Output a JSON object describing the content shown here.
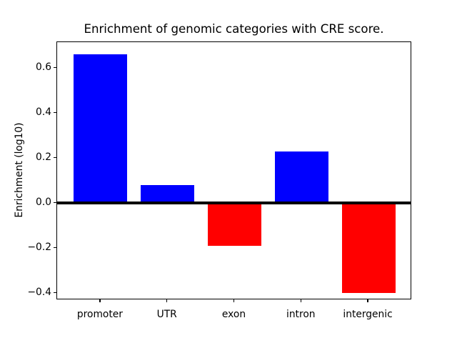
{
  "chart_data": {
    "type": "bar",
    "title": "Enrichment of genomic categories with CRE score.",
    "ylabel": "Enrichment (log10)",
    "xlabel": "",
    "categories": [
      "promoter",
      "UTR",
      "exon",
      "intron",
      "intergenic"
    ],
    "values": [
      0.66,
      0.08,
      -0.19,
      0.23,
      -0.4
    ],
    "bar_colors": [
      "#0000ff",
      "#0000ff",
      "#ff0000",
      "#0000ff",
      "#ff0000"
    ],
    "positive_color": "#0000ff",
    "negative_color": "#ff0000",
    "bar_width_units": 0.8,
    "ylim": [
      -0.431,
      0.715
    ],
    "xlim": [
      -0.65,
      4.65
    ],
    "yticks": [
      0.6,
      0.4,
      0.2,
      0.0,
      -0.2,
      -0.4
    ],
    "ytick_labels": [
      "0.6",
      "0.4",
      "0.2",
      "0.0",
      "−0.2",
      "−0.4"
    ],
    "grid": false,
    "legend": null,
    "zero_line": true,
    "background_color": "#ffffff",
    "axis_color": "#000000"
  }
}
